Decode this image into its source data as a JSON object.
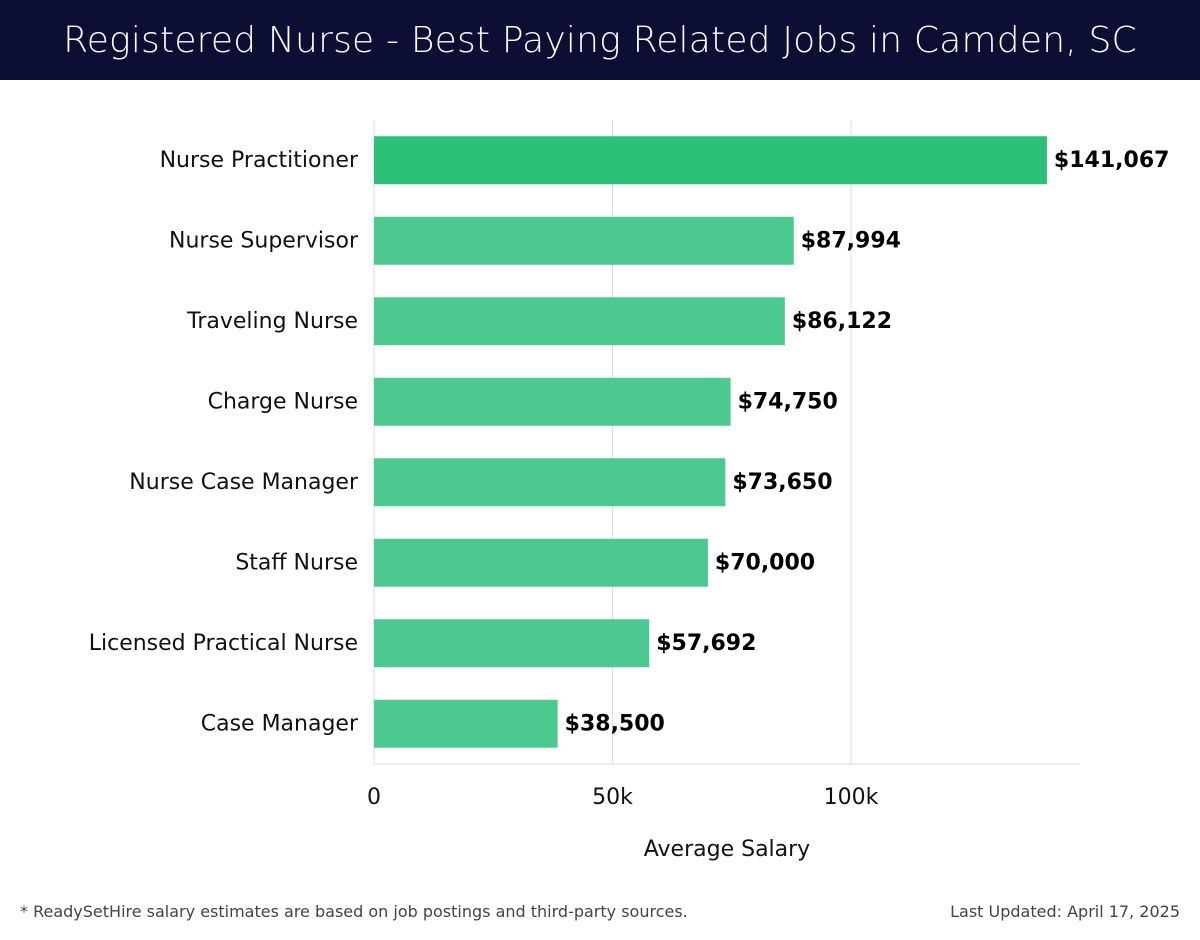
{
  "header": {
    "title": "Registered Nurse - Best Paying Related Jobs in Camden, SC"
  },
  "footer": {
    "note": "* ReadySetHire salary estimates are based on job postings and third-party sources.",
    "last_updated": "Last Updated: April 17, 2025"
  },
  "colors": {
    "header_bg": "#0d0e33",
    "bar_top": "#2bbf78",
    "bar": "#4cc98f",
    "grid": "#dddddd"
  },
  "chart_data": {
    "type": "bar",
    "orientation": "horizontal",
    "categories": [
      "Nurse Practitioner",
      "Nurse Supervisor",
      "Traveling Nurse",
      "Charge Nurse",
      "Nurse Case Manager",
      "Staff Nurse",
      "Licensed Practical Nurse",
      "Case Manager"
    ],
    "values": [
      141067,
      87994,
      86122,
      74750,
      73650,
      70000,
      57692,
      38500
    ],
    "value_labels": [
      "$141,067",
      "$87,994",
      "$86,122",
      "$74,750",
      "$73,650",
      "$70,000",
      "$57,692",
      "$38,500"
    ],
    "xlabel": "Average Salary",
    "ylabel": "",
    "xticks": [
      0,
      50000,
      100000
    ],
    "xtick_labels": [
      "0",
      "50k",
      "100k"
    ],
    "xlim": [
      0,
      148000
    ],
    "grid": true,
    "legend": "none"
  }
}
